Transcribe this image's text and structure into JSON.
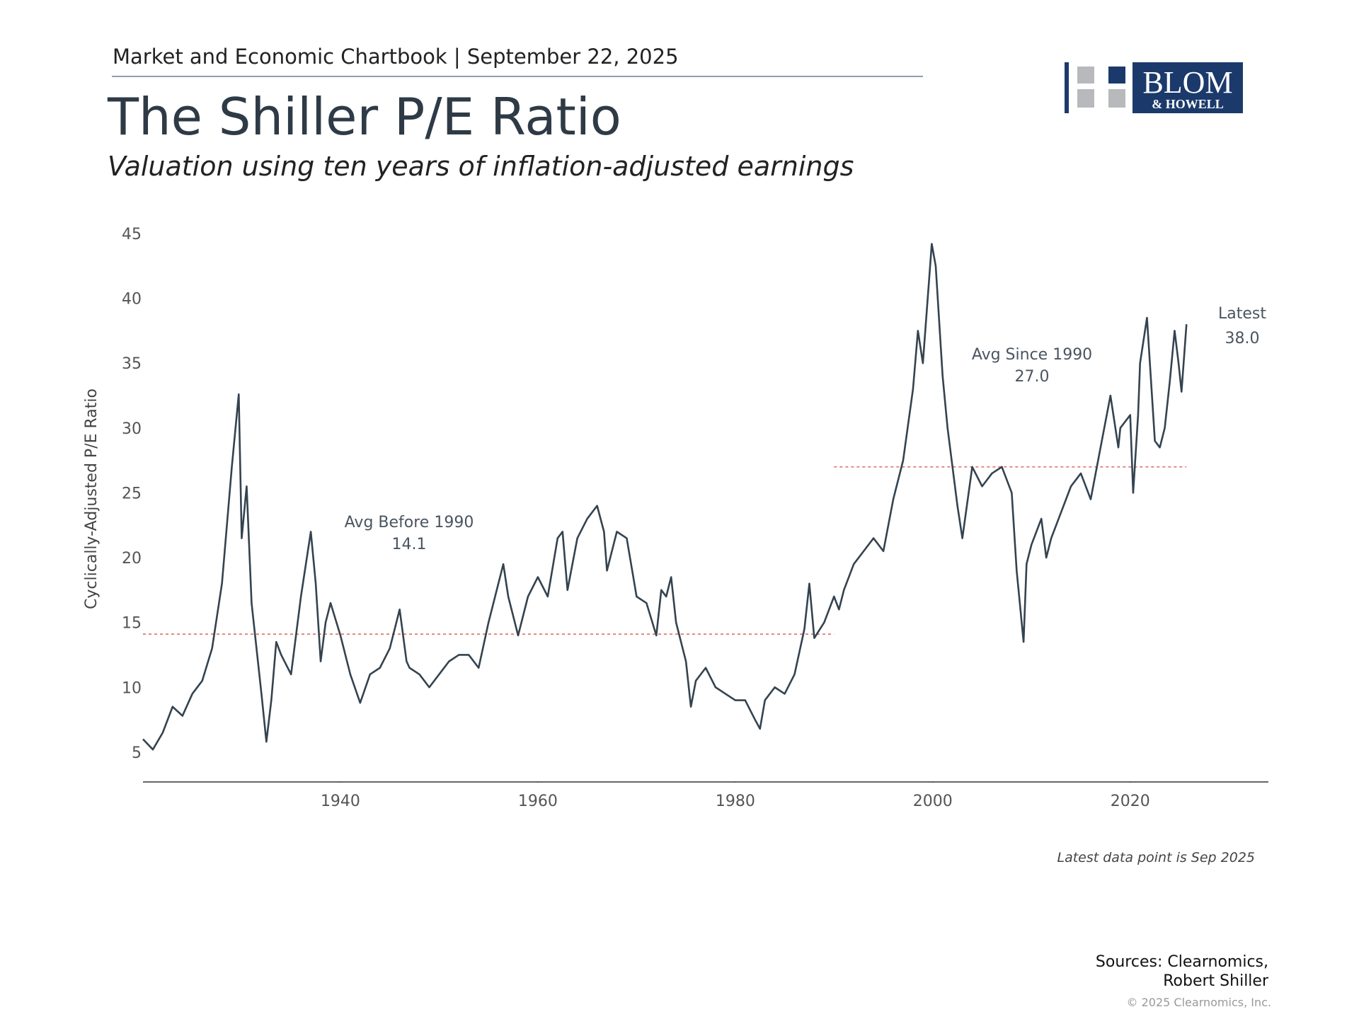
{
  "header": "Market and Economic Chartbook | September 22, 2025",
  "logo": {
    "line1": "BLOM",
    "line2": "& HOWELL"
  },
  "chart_data": {
    "type": "line",
    "title": "The Shiller P/E Ratio",
    "subtitle": "Valuation using ten years of inflation-adjusted earnings",
    "y_label": "Cyclically-Adjusted P/E Ratio",
    "color": "#34434f",
    "x": [
      1920,
      1921,
      1922,
      1923,
      1924,
      1925,
      1926,
      1927,
      1928,
      1929,
      1929.7,
      1930,
      1930.5,
      1931,
      1932,
      1932.5,
      1933,
      1933.5,
      1934,
      1935,
      1936,
      1937,
      1937.5,
      1938,
      1938.5,
      1939,
      1940,
      1941,
      1942,
      1943,
      1944,
      1945,
      1946,
      1946.7,
      1947,
      1948,
      1949,
      1950,
      1951,
      1952,
      1953,
      1954,
      1955,
      1956,
      1956.5,
      1957,
      1958,
      1959,
      1960,
      1961,
      1962,
      1962.5,
      1963,
      1964,
      1965,
      1966,
      1966.7,
      1967,
      1968,
      1969,
      1970,
      1971,
      1972,
      1972.5,
      1973,
      1973.5,
      1974,
      1975,
      1975.5,
      1976,
      1977,
      1978,
      1979,
      1980,
      1981,
      1982,
      1982.5,
      1983,
      1984,
      1985,
      1986,
      1987,
      1987.5,
      1988,
      1989,
      1990,
      1990.5,
      1991,
      1992,
      1993,
      1994,
      1995,
      1996,
      1997,
      1998,
      1998.5,
      1999,
      1999.9,
      2000.3,
      2001,
      2001.5,
      2002,
      2002.5,
      2003,
      2004,
      2005,
      2006,
      2007,
      2008,
      2008.5,
      2009.2,
      2009.5,
      2010,
      2011,
      2011.5,
      2012,
      2013,
      2014,
      2015,
      2016,
      2017,
      2018,
      2018.8,
      2019,
      2020,
      2020.3,
      2020.8,
      2021,
      2021.7,
      2022.5,
      2023,
      2023.5,
      2024,
      2024.5,
      2024.9,
      2025.2,
      2025.7
    ],
    "values": [
      6,
      5.2,
      6.5,
      8.5,
      7.8,
      9.5,
      10.5,
      13,
      18,
      27,
      32.6,
      21.5,
      25.5,
      16.5,
      9.5,
      5.8,
      9,
      13.5,
      12.5,
      11,
      17,
      22,
      18,
      12,
      15,
      16.5,
      14,
      11,
      8.8,
      11,
      11.5,
      13,
      16,
      12,
      11.5,
      11,
      10,
      11,
      12,
      12.5,
      12.5,
      11.5,
      15,
      18,
      19.5,
      17,
      14,
      17,
      18.5,
      17,
      21.5,
      22,
      17.5,
      21.5,
      23,
      24,
      22,
      19,
      22,
      21.5,
      17,
      16.5,
      14,
      17.5,
      17,
      18.5,
      15,
      12,
      8.5,
      10.5,
      11.5,
      10,
      9.5,
      9,
      9,
      7.5,
      6.8,
      9,
      10,
      9.5,
      11,
      14.5,
      18,
      13.8,
      15,
      17,
      16,
      17.5,
      19.5,
      20.5,
      21.5,
      20.5,
      24.5,
      27.5,
      33,
      37.5,
      35,
      44.2,
      42.5,
      34,
      30,
      27,
      24,
      21.5,
      27,
      25.5,
      26.5,
      27,
      25,
      19,
      13.5,
      19.5,
      21,
      23,
      20,
      21.5,
      23.5,
      25.5,
      26.5,
      24.5,
      28.5,
      32.5,
      28.5,
      30,
      31,
      25,
      31,
      35,
      38.5,
      29,
      28.5,
      30,
      33.5,
      37.5,
      35,
      32.8,
      38
    ],
    "xlim": [
      1920,
      2034
    ],
    "ylim": [
      2.7,
      45
    ],
    "xticks": [
      1940,
      1960,
      1980,
      2000,
      2020
    ],
    "yticks": [
      5,
      10,
      15,
      20,
      25,
      30,
      35,
      40,
      45
    ],
    "grid": false,
    "reference_lines": [
      {
        "label": "Avg Before 1990",
        "value": 14.1,
        "x": [
          1920,
          1990
        ],
        "color": "#e07a72"
      },
      {
        "label": "Avg Since 1990",
        "value": 27,
        "value_label": "27.0",
        "x": [
          1990,
          2025.7
        ],
        "color": "#e07a72"
      }
    ],
    "latest": {
      "label": "Latest",
      "value": 38,
      "value_label": "38.0"
    },
    "note": "Latest data point is Sep 2025"
  },
  "sources": [
    "Sources: Clearnomics,",
    "Robert Shiller"
  ],
  "copyright": "© 2025 Clearnomics, Inc."
}
